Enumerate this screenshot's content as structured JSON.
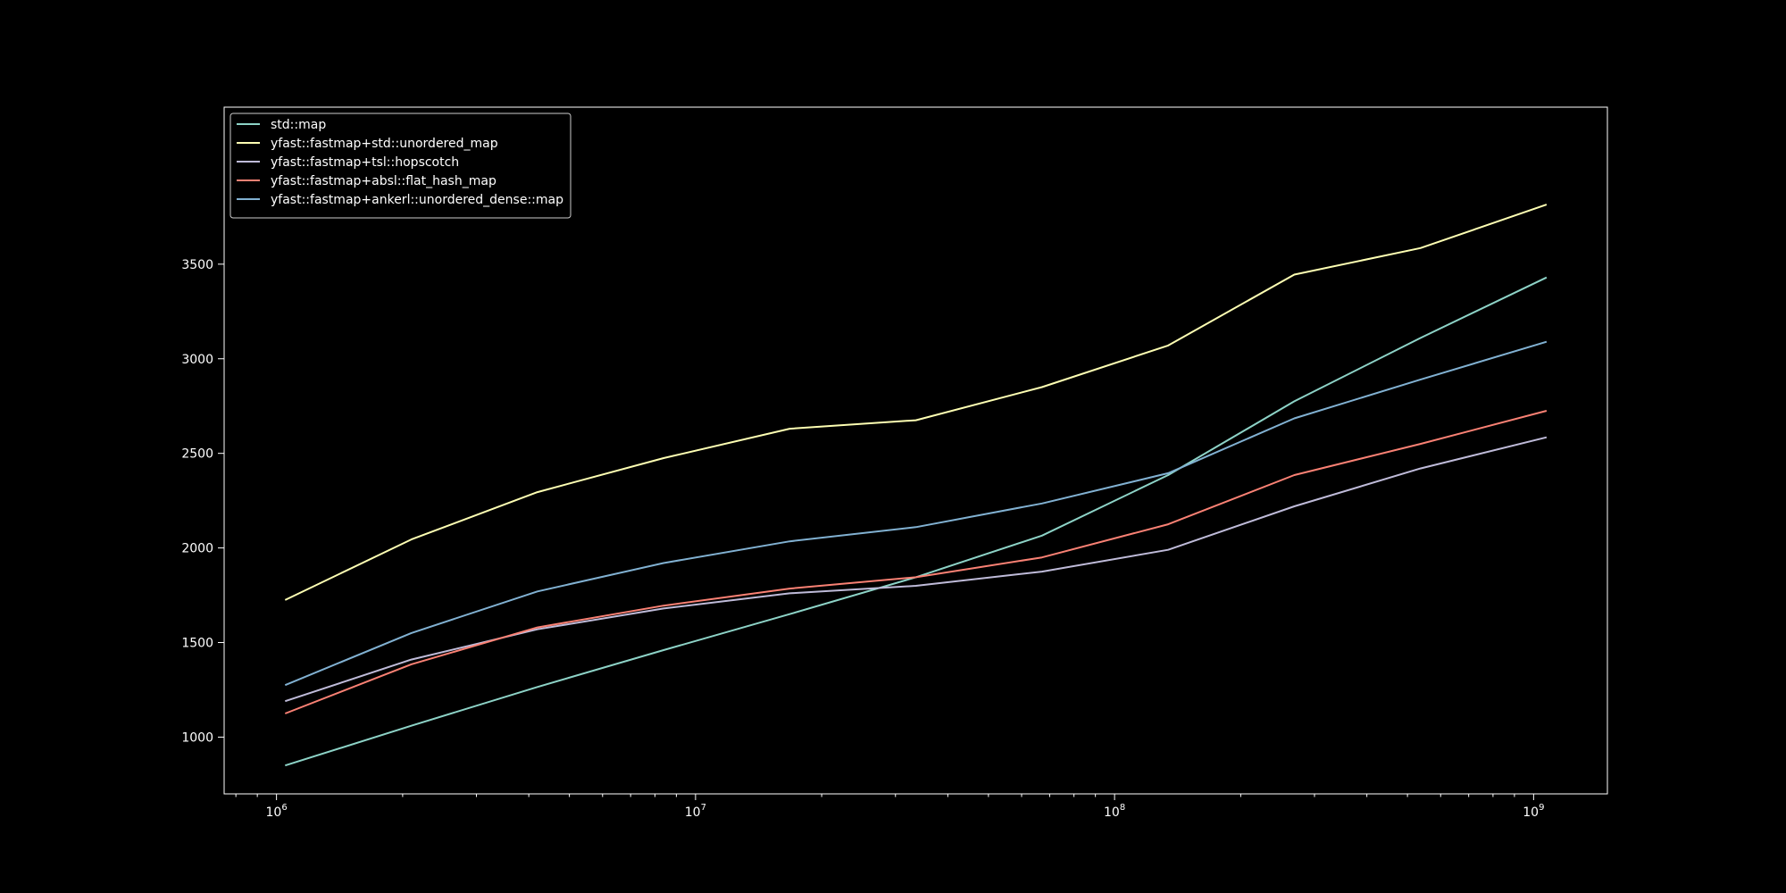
{
  "chart_data": {
    "type": "line",
    "title": "",
    "xlabel": "",
    "ylabel": "",
    "x_scale": "log",
    "xlim": [
      750000,
      1500000000
    ],
    "ylim": [
      700,
      4330
    ],
    "grid": false,
    "legend_position": "top-left",
    "background": "#000000",
    "foreground": "#ffffff",
    "x_ticks": [
      {
        "value": 1000000,
        "base": "10",
        "exp": "6"
      },
      {
        "value": 10000000,
        "base": "10",
        "exp": "7"
      },
      {
        "value": 100000000,
        "base": "10",
        "exp": "8"
      },
      {
        "value": 1000000000,
        "base": "10",
        "exp": "9"
      }
    ],
    "y_ticks": [
      {
        "value": 1000,
        "label": "1000"
      },
      {
        "value": 1500,
        "label": "1500"
      },
      {
        "value": 2000,
        "label": "2000"
      },
      {
        "value": 2500,
        "label": "2500"
      },
      {
        "value": 3000,
        "label": "3000"
      },
      {
        "value": 3500,
        "label": "3500"
      }
    ],
    "x": [
      1048576,
      2097152,
      4194304,
      8388608,
      16777216,
      33554432,
      67108864,
      134217728,
      268435456,
      536870912,
      1073741824
    ],
    "series": [
      {
        "name": "std::map",
        "color": "#8dd3c7",
        "values": [
          850,
          1060,
          1265,
          1460,
          1650,
          1845,
          2065,
          2385,
          2775,
          3110,
          3430
        ]
      },
      {
        "name": "yfast::fastmap+std::unordered_map",
        "color": "#feffb3",
        "values": [
          1725,
          2045,
          2295,
          2475,
          2630,
          2675,
          2850,
          3070,
          3445,
          3585,
          3815
        ]
      },
      {
        "name": "yfast::fastmap+tsl::hopscotch",
        "color": "#bfbbd9",
        "values": [
          1190,
          1410,
          1570,
          1680,
          1760,
          1800,
          1875,
          1990,
          2220,
          2420,
          2585
        ]
      },
      {
        "name": "yfast::fastmap+absl::flat_hash_map",
        "color": "#fa8174",
        "values": [
          1125,
          1385,
          1580,
          1695,
          1785,
          1845,
          1950,
          2125,
          2385,
          2550,
          2725
        ]
      },
      {
        "name": "yfast::fastmap+ankerl::unordered_dense::map",
        "color": "#81b1d2",
        "values": [
          1275,
          1550,
          1770,
          1920,
          2035,
          2110,
          2235,
          2395,
          2685,
          2890,
          3090
        ]
      }
    ]
  }
}
